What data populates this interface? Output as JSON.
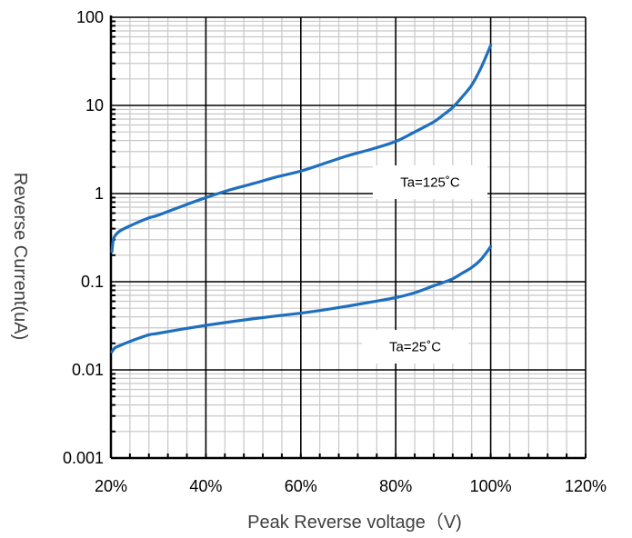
{
  "chart_data": {
    "type": "line",
    "xlabel": "Peak Reverse voltage（V)",
    "ylabel": "Reverse Current(uA)",
    "x_scale": "linear",
    "y_scale": "log",
    "xlim": [
      20,
      120
    ],
    "ylim": [
      0.001,
      100
    ],
    "x_ticks": [
      {
        "value": 20,
        "label": "20%"
      },
      {
        "value": 40,
        "label": "40%"
      },
      {
        "value": 60,
        "label": "60%"
      },
      {
        "value": 80,
        "label": "80%"
      },
      {
        "value": 100,
        "label": "100%"
      },
      {
        "value": 120,
        "label": "120%"
      }
    ],
    "y_ticks": [
      {
        "value": 100,
        "label": "100"
      },
      {
        "value": 10,
        "label": "10"
      },
      {
        "value": 1,
        "label": "1"
      },
      {
        "value": 0.1,
        "label": "0.1"
      },
      {
        "value": 0.01,
        "label": "0.01"
      },
      {
        "value": 0.001,
        "label": "0.001"
      }
    ],
    "grid": true,
    "line_color": "#1f6fbf",
    "series": [
      {
        "name": "Ta=125˚C",
        "x": [
          20.2,
          20.5,
          21,
          22,
          24,
          26,
          28,
          30,
          35,
          40,
          45,
          50,
          55,
          60,
          65,
          70,
          75,
          80,
          84,
          88,
          90,
          92,
          94,
          96,
          98,
          100
        ],
        "y": [
          0.22,
          0.3,
          0.34,
          0.38,
          0.43,
          0.48,
          0.53,
          0.57,
          0.72,
          0.9,
          1.1,
          1.3,
          1.55,
          1.8,
          2.2,
          2.7,
          3.2,
          3.9,
          5.0,
          6.5,
          7.8,
          9.5,
          12.5,
          17,
          27,
          48
        ]
      },
      {
        "name": "Ta=25˚C",
        "x": [
          20.2,
          20.5,
          21,
          22,
          24,
          26,
          28,
          30,
          35,
          40,
          45,
          50,
          55,
          60,
          65,
          70,
          75,
          80,
          84,
          88,
          90,
          92,
          94,
          96,
          98,
          100
        ],
        "y": [
          0.016,
          0.017,
          0.018,
          0.019,
          0.021,
          0.023,
          0.025,
          0.026,
          0.029,
          0.032,
          0.035,
          0.038,
          0.041,
          0.044,
          0.048,
          0.053,
          0.059,
          0.066,
          0.075,
          0.09,
          0.098,
          0.108,
          0.125,
          0.145,
          0.18,
          0.25
        ]
      }
    ],
    "annotations": [
      {
        "text": "Ta=125˚C",
        "series": 0
      },
      {
        "text": "Ta=25˚C",
        "series": 1
      }
    ]
  }
}
